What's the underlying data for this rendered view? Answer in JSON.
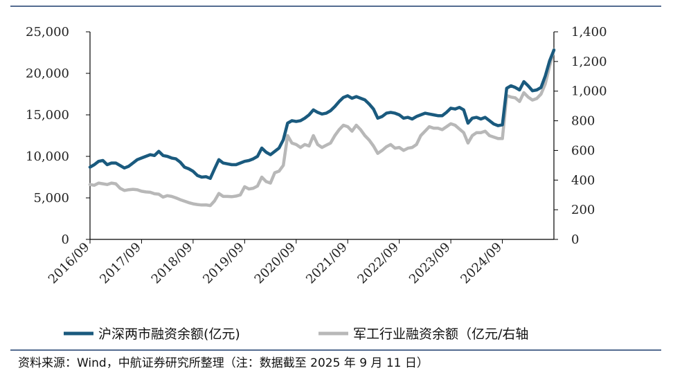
{
  "chart_data": {
    "type": "line",
    "x_tick_labels": [
      "2016/09",
      "2017/09",
      "2018/09",
      "2019/09",
      "2020/09",
      "2021/09",
      "2022/09",
      "2023/09",
      "2024/09"
    ],
    "x_range": [
      "2016/09",
      "2025/09"
    ],
    "y_left": {
      "range": [
        0,
        25000
      ],
      "ticks": [
        "0",
        "5,000",
        "10,000",
        "15,000",
        "20,000",
        "25,000"
      ]
    },
    "y_right": {
      "range": [
        0,
        1400
      ],
      "ticks": [
        "0",
        "200",
        "400",
        "600",
        "800",
        "1,000",
        "1,200",
        "1,400"
      ]
    },
    "grid": false,
    "legend_position": "bottom",
    "series": [
      {
        "name": "沪深两市融资余额(亿元)",
        "axis": "left",
        "color": "#1a5a7e",
        "points": [
          [
            "2016-09",
            8700
          ],
          [
            "2016-10",
            9000
          ],
          [
            "2016-11",
            9400
          ],
          [
            "2016-12",
            9500
          ],
          [
            "2017-01",
            9000
          ],
          [
            "2017-02",
            9200
          ],
          [
            "2017-03",
            9200
          ],
          [
            "2017-04",
            8900
          ],
          [
            "2017-05",
            8600
          ],
          [
            "2017-06",
            8800
          ],
          [
            "2017-07",
            9200
          ],
          [
            "2017-08",
            9600
          ],
          [
            "2017-09",
            9800
          ],
          [
            "2017-10",
            10000
          ],
          [
            "2017-11",
            10200
          ],
          [
            "2017-12",
            10100
          ],
          [
            "2018-01",
            10600
          ],
          [
            "2018-02",
            10100
          ],
          [
            "2018-03",
            10000
          ],
          [
            "2018-04",
            9800
          ],
          [
            "2018-05",
            9700
          ],
          [
            "2018-06",
            9300
          ],
          [
            "2018-07",
            8700
          ],
          [
            "2018-08",
            8500
          ],
          [
            "2018-09",
            8200
          ],
          [
            "2018-10",
            7700
          ],
          [
            "2018-11",
            7500
          ],
          [
            "2018-12",
            7550
          ],
          [
            "2019-01",
            7350
          ],
          [
            "2019-02",
            8500
          ],
          [
            "2019-03",
            9600
          ],
          [
            "2019-04",
            9200
          ],
          [
            "2019-05",
            9100
          ],
          [
            "2019-06",
            9000
          ],
          [
            "2019-07",
            9000
          ],
          [
            "2019-08",
            9200
          ],
          [
            "2019-09",
            9400
          ],
          [
            "2019-10",
            9500
          ],
          [
            "2019-11",
            9700
          ],
          [
            "2019-12",
            10000
          ],
          [
            "2020-01",
            11000
          ],
          [
            "2020-02",
            10500
          ],
          [
            "2020-03",
            10200
          ],
          [
            "2020-04",
            10600
          ],
          [
            "2020-05",
            11000
          ],
          [
            "2020-06",
            12000
          ],
          [
            "2020-07",
            14000
          ],
          [
            "2020-08",
            14300
          ],
          [
            "2020-09",
            14200
          ],
          [
            "2020-10",
            14300
          ],
          [
            "2020-11",
            14600
          ],
          [
            "2020-12",
            15000
          ],
          [
            "2021-01",
            15600
          ],
          [
            "2021-02",
            15300
          ],
          [
            "2021-03",
            15100
          ],
          [
            "2021-04",
            15200
          ],
          [
            "2021-05",
            15500
          ],
          [
            "2021-06",
            16000
          ],
          [
            "2021-07",
            16600
          ],
          [
            "2021-08",
            17100
          ],
          [
            "2021-09",
            17300
          ],
          [
            "2021-10",
            17000
          ],
          [
            "2021-11",
            17200
          ],
          [
            "2021-12",
            17000
          ],
          [
            "2022-01",
            16800
          ],
          [
            "2022-02",
            16300
          ],
          [
            "2022-03",
            15700
          ],
          [
            "2022-04",
            14600
          ],
          [
            "2022-05",
            14800
          ],
          [
            "2022-06",
            15200
          ],
          [
            "2022-07",
            15300
          ],
          [
            "2022-08",
            15200
          ],
          [
            "2022-09",
            15000
          ],
          [
            "2022-10",
            14600
          ],
          [
            "2022-11",
            14700
          ],
          [
            "2022-12",
            14500
          ],
          [
            "2023-01",
            14800
          ],
          [
            "2023-02",
            15000
          ],
          [
            "2023-03",
            15200
          ],
          [
            "2023-04",
            15100
          ],
          [
            "2023-05",
            15000
          ],
          [
            "2023-06",
            14900
          ],
          [
            "2023-07",
            14900
          ],
          [
            "2023-08",
            15300
          ],
          [
            "2023-09",
            15800
          ],
          [
            "2023-10",
            15700
          ],
          [
            "2023-11",
            15900
          ],
          [
            "2023-12",
            15600
          ],
          [
            "2024-01",
            14000
          ],
          [
            "2024-02",
            14600
          ],
          [
            "2024-03",
            14700
          ],
          [
            "2024-04",
            14500
          ],
          [
            "2024-05",
            14700
          ],
          [
            "2024-06",
            14300
          ],
          [
            "2024-07",
            13900
          ],
          [
            "2024-08",
            13700
          ],
          [
            "2024-09",
            13800
          ],
          [
            "2024-10",
            18200
          ],
          [
            "2024-11",
            18500
          ],
          [
            "2024-12",
            18300
          ],
          [
            "2025-01",
            18000
          ],
          [
            "2025-02",
            19000
          ],
          [
            "2025-03",
            18500
          ],
          [
            "2025-04",
            17900
          ],
          [
            "2025-05",
            18000
          ],
          [
            "2025-06",
            18300
          ],
          [
            "2025-07",
            19700
          ],
          [
            "2025-08",
            21500
          ],
          [
            "2025-09",
            22800
          ]
        ]
      },
      {
        "name": "军工行业融资余额（亿元/右轴",
        "axis": "right",
        "color": "#b8b8b8",
        "points": [
          [
            "2016-09",
            370
          ],
          [
            "2016-10",
            365
          ],
          [
            "2016-11",
            380
          ],
          [
            "2016-12",
            375
          ],
          [
            "2017-01",
            370
          ],
          [
            "2017-02",
            380
          ],
          [
            "2017-03",
            375
          ],
          [
            "2017-04",
            345
          ],
          [
            "2017-05",
            330
          ],
          [
            "2017-06",
            335
          ],
          [
            "2017-07",
            338
          ],
          [
            "2017-08",
            335
          ],
          [
            "2017-09",
            325
          ],
          [
            "2017-10",
            320
          ],
          [
            "2017-11",
            318
          ],
          [
            "2017-12",
            308
          ],
          [
            "2018-01",
            305
          ],
          [
            "2018-02",
            285
          ],
          [
            "2018-03",
            295
          ],
          [
            "2018-04",
            290
          ],
          [
            "2018-05",
            280
          ],
          [
            "2018-06",
            268
          ],
          [
            "2018-07",
            258
          ],
          [
            "2018-08",
            248
          ],
          [
            "2018-09",
            240
          ],
          [
            "2018-10",
            235
          ],
          [
            "2018-11",
            232
          ],
          [
            "2018-12",
            233
          ],
          [
            "2019-01",
            228
          ],
          [
            "2019-02",
            260
          ],
          [
            "2019-03",
            310
          ],
          [
            "2019-04",
            290
          ],
          [
            "2019-05",
            290
          ],
          [
            "2019-06",
            288
          ],
          [
            "2019-07",
            292
          ],
          [
            "2019-08",
            300
          ],
          [
            "2019-09",
            355
          ],
          [
            "2019-10",
            340
          ],
          [
            "2019-11",
            345
          ],
          [
            "2019-12",
            360
          ],
          [
            "2020-01",
            420
          ],
          [
            "2020-02",
            390
          ],
          [
            "2020-03",
            380
          ],
          [
            "2020-04",
            450
          ],
          [
            "2020-05",
            460
          ],
          [
            "2020-06",
            500
          ],
          [
            "2020-07",
            700
          ],
          [
            "2020-08",
            650
          ],
          [
            "2020-09",
            640
          ],
          [
            "2020-10",
            620
          ],
          [
            "2020-11",
            640
          ],
          [
            "2020-12",
            630
          ],
          [
            "2021-01",
            700
          ],
          [
            "2021-02",
            640
          ],
          [
            "2021-03",
            620
          ],
          [
            "2021-04",
            635
          ],
          [
            "2021-05",
            650
          ],
          [
            "2021-06",
            700
          ],
          [
            "2021-07",
            740
          ],
          [
            "2021-08",
            770
          ],
          [
            "2021-09",
            760
          ],
          [
            "2021-10",
            730
          ],
          [
            "2021-11",
            770
          ],
          [
            "2021-12",
            740
          ],
          [
            "2022-01",
            700
          ],
          [
            "2022-02",
            670
          ],
          [
            "2022-03",
            630
          ],
          [
            "2022-04",
            580
          ],
          [
            "2022-05",
            600
          ],
          [
            "2022-06",
            625
          ],
          [
            "2022-07",
            640
          ],
          [
            "2022-08",
            615
          ],
          [
            "2022-09",
            620
          ],
          [
            "2022-10",
            600
          ],
          [
            "2022-11",
            615
          ],
          [
            "2022-12",
            620
          ],
          [
            "2023-01",
            640
          ],
          [
            "2023-02",
            700
          ],
          [
            "2023-03",
            730
          ],
          [
            "2023-04",
            760
          ],
          [
            "2023-05",
            750
          ],
          [
            "2023-06",
            750
          ],
          [
            "2023-07",
            740
          ],
          [
            "2023-08",
            760
          ],
          [
            "2023-09",
            780
          ],
          [
            "2023-10",
            770
          ],
          [
            "2023-11",
            745
          ],
          [
            "2023-12",
            720
          ],
          [
            "2024-01",
            650
          ],
          [
            "2024-02",
            700
          ],
          [
            "2024-03",
            720
          ],
          [
            "2024-04",
            720
          ],
          [
            "2024-05",
            730
          ],
          [
            "2024-06",
            700
          ],
          [
            "2024-07",
            690
          ],
          [
            "2024-08",
            680
          ],
          [
            "2024-09",
            680
          ],
          [
            "2024-10",
            970
          ],
          [
            "2024-11",
            960
          ],
          [
            "2024-12",
            955
          ],
          [
            "2025-01",
            930
          ],
          [
            "2025-02",
            990
          ],
          [
            "2025-03",
            960
          ],
          [
            "2025-04",
            940
          ],
          [
            "2025-05",
            950
          ],
          [
            "2025-06",
            980
          ],
          [
            "2025-07",
            1050
          ],
          [
            "2025-08",
            1170
          ],
          [
            "2025-09",
            1280
          ]
        ]
      }
    ]
  },
  "source_note": "资料来源：Wind，中航证券研究所整理（注：数据截至 2025 年 9 月 11 日）",
  "colors": {
    "frame_line": "#1a3a6b",
    "axis": "#000000"
  }
}
